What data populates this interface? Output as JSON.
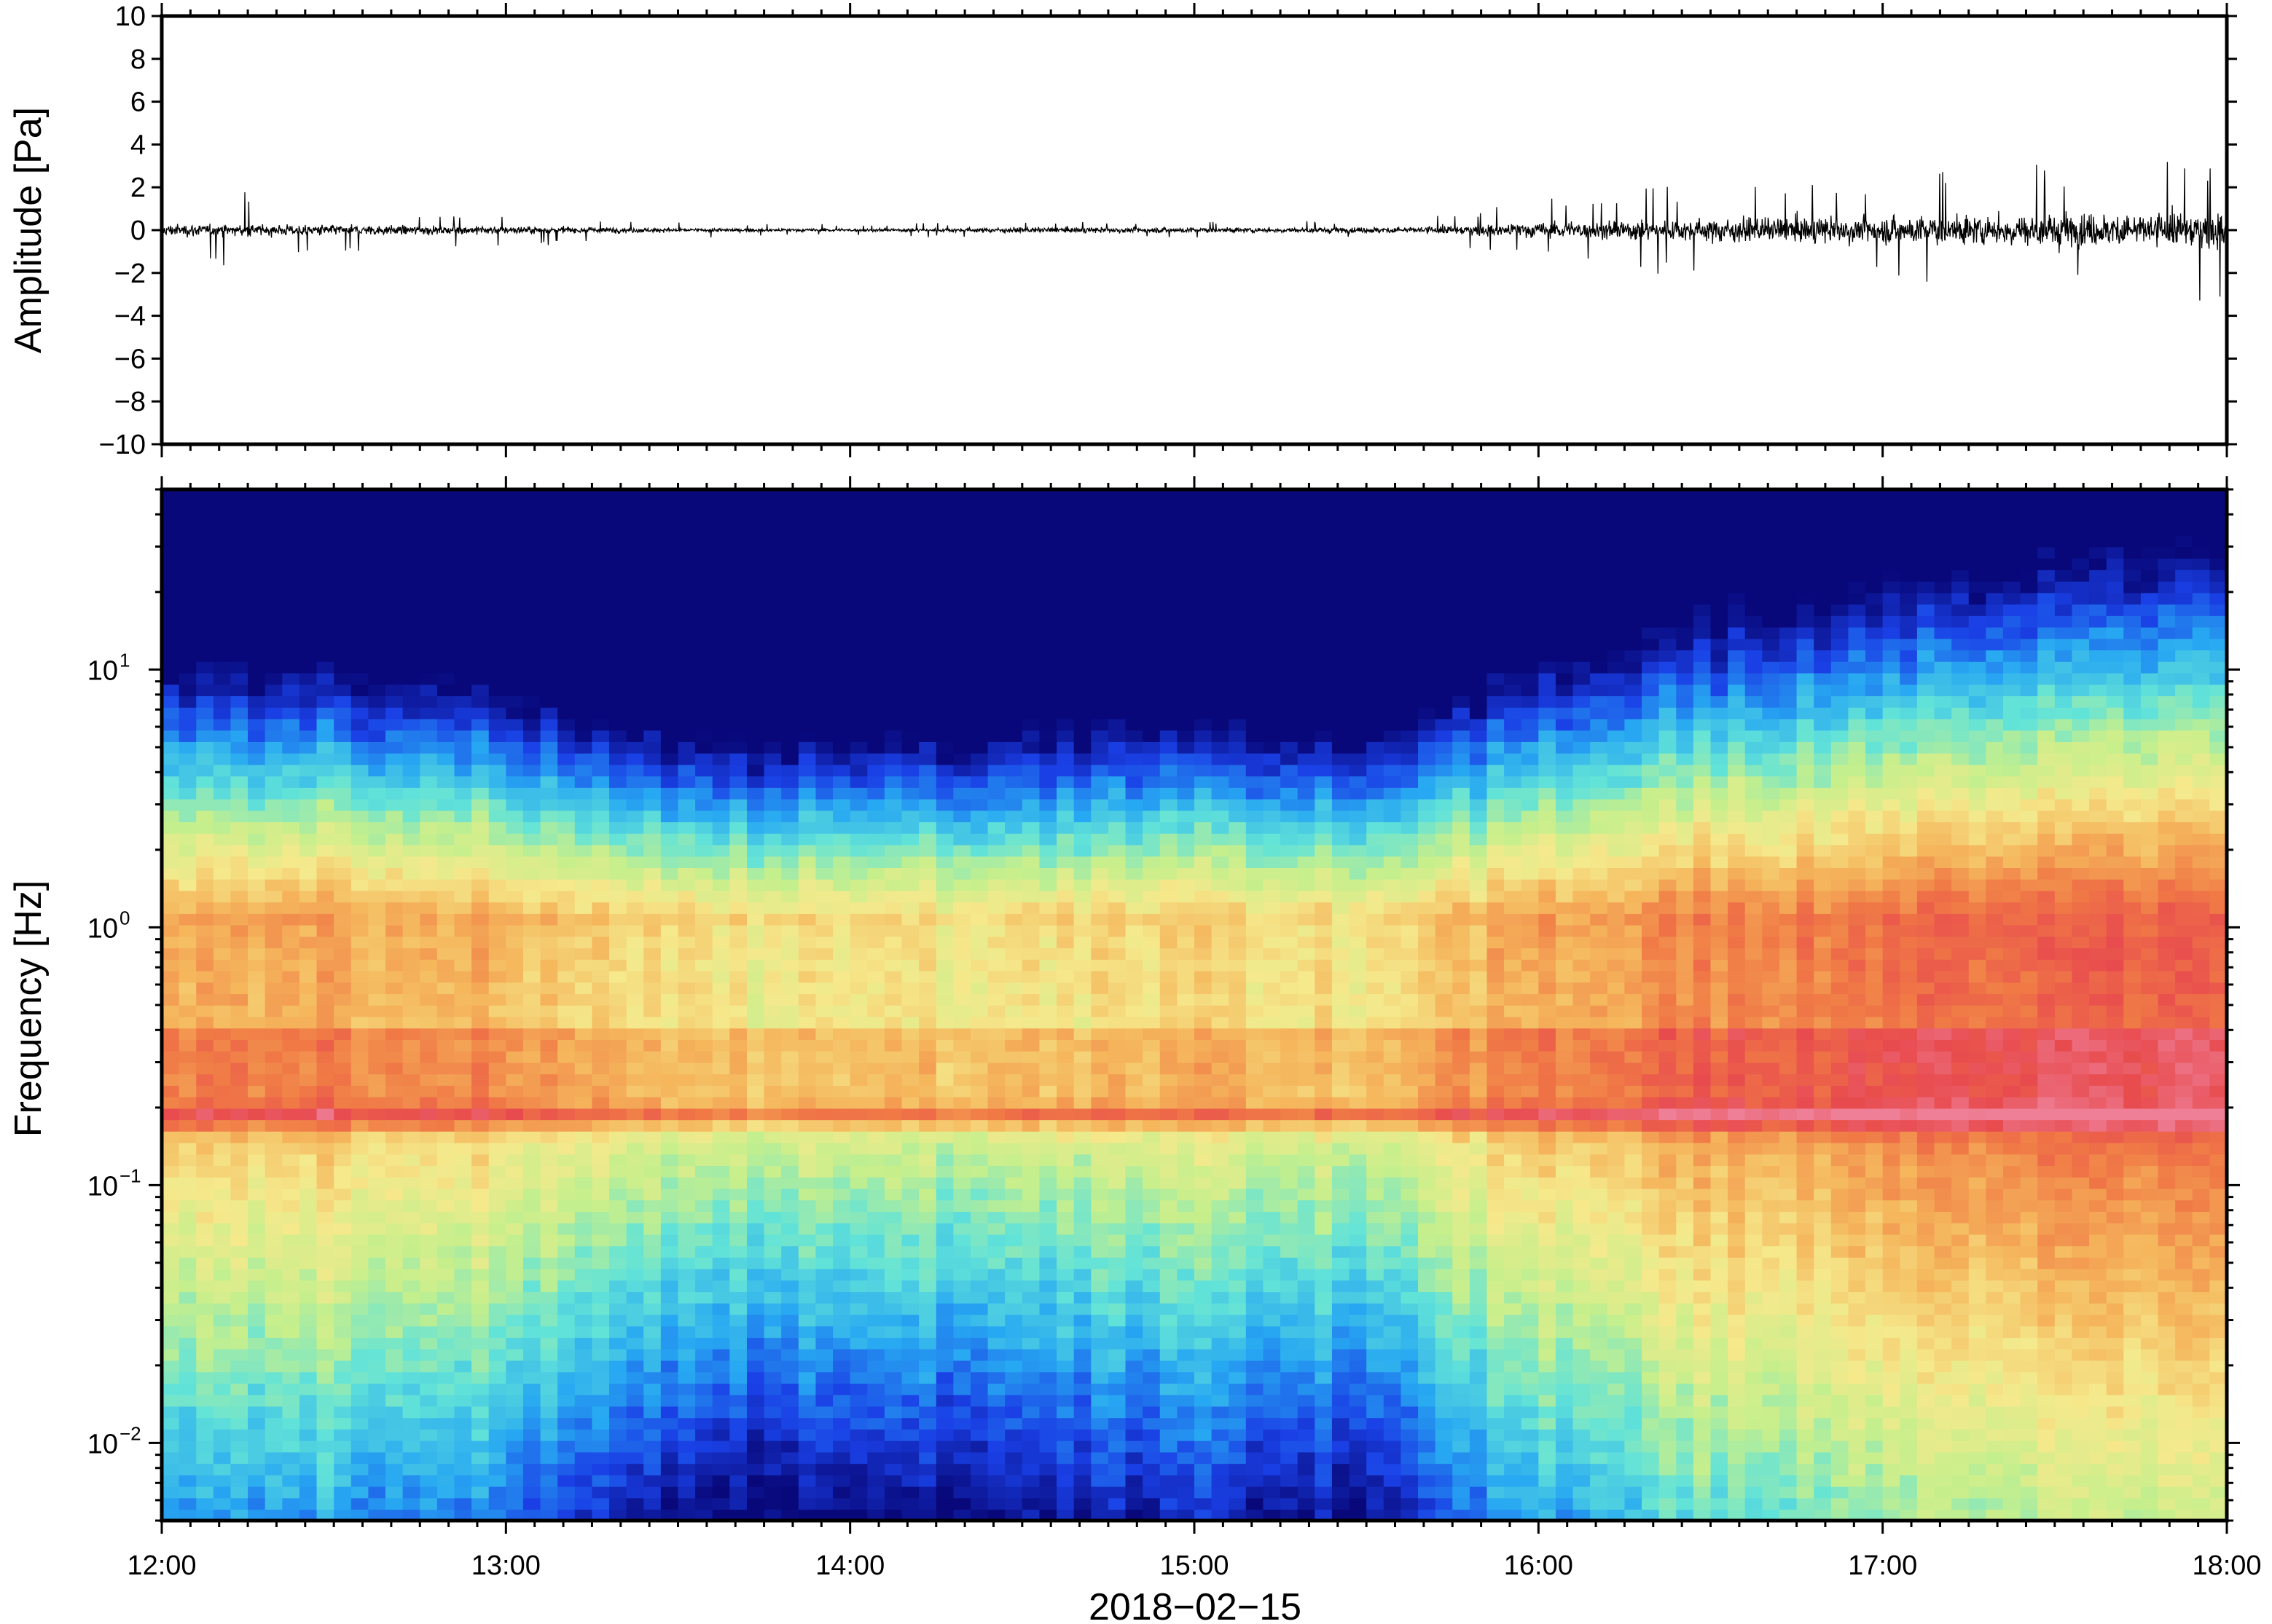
{
  "chart_data": [
    {
      "type": "line",
      "panel": "waveform",
      "ylabel": "Amplitude [Pa]",
      "ylim": [
        -10,
        10
      ],
      "yticks": [
        "10",
        "8",
        "6",
        "4",
        "2",
        "0",
        "−2",
        "−4",
        "−6",
        "−8",
        "−10"
      ],
      "ytick_values": [
        10,
        8,
        6,
        4,
        2,
        0,
        -2,
        -4,
        -6,
        -8,
        -10
      ],
      "x_start": "12:00",
      "x_end": "18:00",
      "envelope": {
        "times": [
          "12:00",
          "12:15",
          "12:30",
          "12:45",
          "13:00",
          "13:15",
          "13:30",
          "13:45",
          "14:00",
          "14:15",
          "14:30",
          "14:45",
          "15:00",
          "15:15",
          "15:30",
          "15:45",
          "16:00",
          "16:15",
          "16:30",
          "16:45",
          "17:00",
          "17:15",
          "17:30",
          "17:45",
          "18:00"
        ],
        "typical_amplitude": [
          0.5,
          0.45,
          0.4,
          0.35,
          0.3,
          0.25,
          0.15,
          0.12,
          0.12,
          0.15,
          0.2,
          0.22,
          0.2,
          0.2,
          0.22,
          0.35,
          0.6,
          0.8,
          0.9,
          1.0,
          1.1,
          1.2,
          1.3,
          1.4,
          1.4
        ],
        "peak_amplitude": [
          1.5,
          1.8,
          1.0,
          0.9,
          0.8,
          0.6,
          0.4,
          0.3,
          0.3,
          0.35,
          0.4,
          0.45,
          0.4,
          0.4,
          0.5,
          0.8,
          1.5,
          2.0,
          2.3,
          2.4,
          2.6,
          3.0,
          3.2,
          3.5,
          3.8
        ]
      },
      "grid": false
    },
    {
      "type": "heatmap",
      "panel": "spectrogram",
      "ylabel": "Frequency [Hz]",
      "yscale": "log",
      "ylim": [
        0.005,
        50
      ],
      "yticks": [
        {
          "value": 10,
          "base": "10",
          "exp": "1"
        },
        {
          "value": 1,
          "base": "10",
          "exp": "0"
        },
        {
          "value": 0.1,
          "base": "10",
          "exp": "−1"
        },
        {
          "value": 0.01,
          "base": "10",
          "exp": "−2"
        }
      ],
      "xlabel": "2018−02−15",
      "xticks": [
        "12:00",
        "13:00",
        "14:00",
        "15:00",
        "16:00",
        "17:00",
        "18:00"
      ],
      "colormap": "jet",
      "colormap_stops": [
        "#08087a",
        "#1a40e6",
        "#27a8f2",
        "#62e3d8",
        "#c6ef8c",
        "#f5e98c",
        "#f5b65c",
        "#f07a46",
        "#e84b4e",
        "#ee7f97"
      ],
      "microseism_band_hz": 0.18,
      "relative_power_profile": {
        "times": [
          "12:00",
          "12:30",
          "13:00",
          "13:30",
          "14:00",
          "14:30",
          "15:00",
          "15:30",
          "16:00",
          "16:30",
          "17:00",
          "17:30",
          "18:00"
        ],
        "level": [
          0.55,
          0.52,
          0.45,
          0.2,
          0.18,
          0.25,
          0.3,
          0.22,
          0.55,
          0.7,
          0.8,
          0.85,
          0.9
        ]
      },
      "grid": false
    }
  ]
}
